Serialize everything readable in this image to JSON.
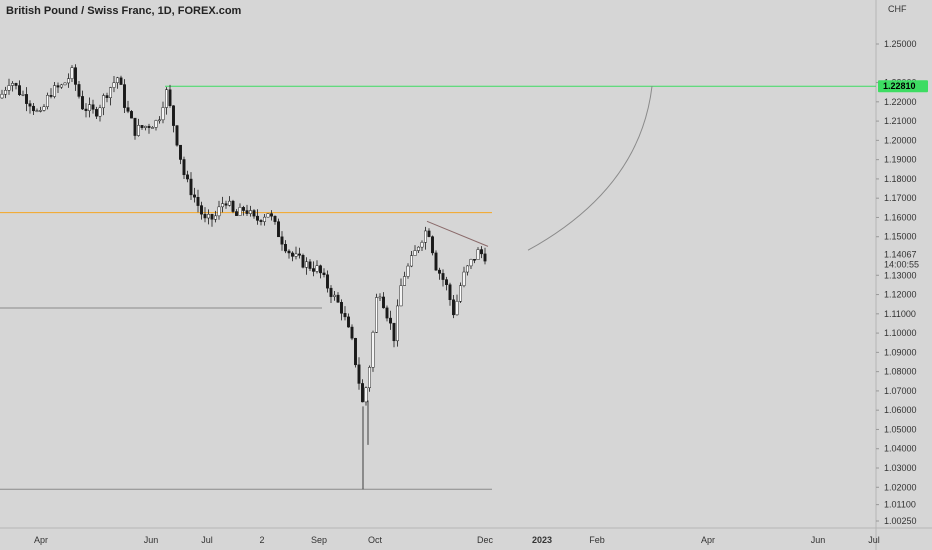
{
  "chart_data": {
    "type": "candlestick",
    "title": "British Pound / Swiss Franc, 1D, FOREX.com",
    "currency_label": "CHF",
    "ylim": [
      1.0,
      1.265
    ],
    "y_ticks": [
      "1.25000",
      "1.23000",
      "1.22000",
      "1.21000",
      "1.20000",
      "1.19000",
      "1.18000",
      "1.17000",
      "1.16000",
      "1.15000",
      "1.13000",
      "1.12000",
      "1.11000",
      "1.10000",
      "1.09000",
      "1.08000",
      "1.07000",
      "1.06000",
      "1.05000",
      "1.04000",
      "1.03000",
      "1.02000",
      "1.01100",
      "1.00250"
    ],
    "x_ticks": [
      {
        "label": "Apr",
        "bold": false
      },
      {
        "label": "Jun",
        "bold": false
      },
      {
        "label": "Jul",
        "bold": false
      },
      {
        "label": "2",
        "bold": false
      },
      {
        "label": "Sep",
        "bold": false
      },
      {
        "label": "Oct",
        "bold": false
      },
      {
        "label": "Dec",
        "bold": false
      },
      {
        "label": "2023",
        "bold": true
      },
      {
        "label": "Feb",
        "bold": false
      },
      {
        "label": "Apr",
        "bold": false
      },
      {
        "label": "Jun",
        "bold": false
      },
      {
        "label": "Jul",
        "bold": false
      }
    ],
    "current_price": "1.14067",
    "countdown": "14:00:55",
    "resistance_price": "1.22810",
    "resistance_value": 1.2281,
    "orange_level": 1.1625,
    "gray_level_mid": 1.113,
    "gray_level_low": 1.019,
    "colors": {
      "background": "#d6d6d6",
      "candle_up": "#ffffff",
      "candle_down": "#1a1a1a",
      "resistance": "#3ddc62",
      "orange": "#f5a623",
      "gray_line": "#8a8a8a",
      "trend": "#8a6a6a",
      "arc": "#8a8a8a"
    },
    "trend_line": {
      "from": [
        427,
        1.158
      ],
      "to": [
        488,
        1.145
      ]
    },
    "projection_arc": "curve rising from about 1.143 to 1.2281"
  }
}
